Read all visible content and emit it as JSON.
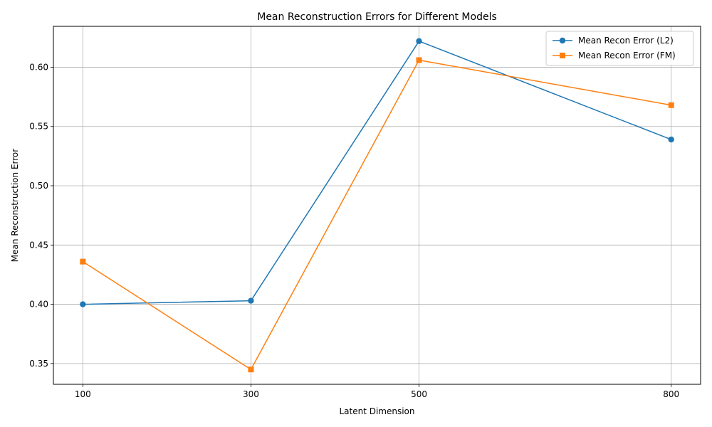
{
  "chart_data": {
    "type": "line",
    "title": "Mean Reconstruction Errors for Different Models",
    "xlabel": "Latent Dimension",
    "ylabel": "Mean Reconstruction Error",
    "x": [
      100,
      300,
      500,
      800
    ],
    "x_tick_labels": [
      "100",
      "300",
      "500",
      "800"
    ],
    "xlim": [
      65,
      835
    ],
    "ylim": [
      0.3325,
      0.6345
    ],
    "y_ticks": [
      0.35,
      0.4,
      0.45,
      0.5,
      0.55,
      0.6
    ],
    "y_tick_labels": [
      "0.35",
      "0.40",
      "0.45",
      "0.50",
      "0.55",
      "0.60"
    ],
    "grid": true,
    "legend_position": "top-right",
    "series": [
      {
        "name": "Mean Recon Error (L2)",
        "values": [
          0.4,
          0.403,
          0.622,
          0.539
        ],
        "color": "#1f77b4",
        "marker": "circle"
      },
      {
        "name": "Mean Recon Error (FM)",
        "values": [
          0.436,
          0.345,
          0.606,
          0.568
        ],
        "color": "#ff7f0e",
        "marker": "square"
      }
    ]
  }
}
